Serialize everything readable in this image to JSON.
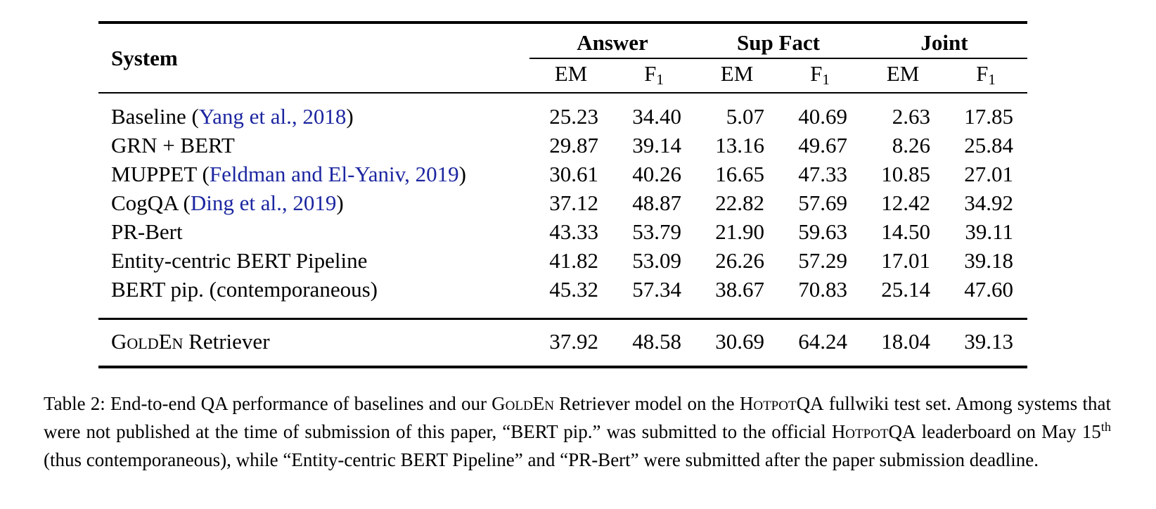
{
  "colors": {
    "background": "#ffffff",
    "text": "#000000",
    "citation_link_blue": "#1c26a0"
  },
  "table": {
    "header": {
      "system_label": "System",
      "groups": [
        {
          "label": "Answer"
        },
        {
          "label": "Sup Fact"
        },
        {
          "label": "Joint"
        }
      ],
      "metrics": [
        {
          "text": "EM",
          "sub": ""
        },
        {
          "text": "F",
          "sub": "1"
        },
        {
          "text": "EM",
          "sub": ""
        },
        {
          "text": "F",
          "sub": "1"
        },
        {
          "text": "EM",
          "sub": ""
        },
        {
          "text": "F",
          "sub": "1"
        }
      ]
    },
    "rows": [
      {
        "label_pre": "Baseline (",
        "label_link": "Yang et al., 2018",
        "label_post": ")",
        "values": [
          "25.23",
          "34.40",
          "5.07",
          "40.69",
          "2.63",
          "17.85"
        ]
      },
      {
        "label_pre": "GRN + BERT",
        "label_link": "",
        "label_post": "",
        "values": [
          "29.87",
          "39.14",
          "13.16",
          "49.67",
          "8.26",
          "25.84"
        ]
      },
      {
        "label_pre": "MUPPET (",
        "label_link": "Feldman and El-Yaniv, 2019",
        "label_post": ")",
        "values": [
          "30.61",
          "40.26",
          "16.65",
          "47.33",
          "10.85",
          "27.01"
        ]
      },
      {
        "label_pre": "CogQA (",
        "label_link": "Ding et al., 2019",
        "label_post": ")",
        "values": [
          "37.12",
          "48.87",
          "22.82",
          "57.69",
          "12.42",
          "34.92"
        ]
      },
      {
        "label_pre": "PR-Bert",
        "label_link": "",
        "label_post": "",
        "values": [
          "43.33",
          "53.79",
          "21.90",
          "59.63",
          "14.50",
          "39.11"
        ]
      },
      {
        "label_pre": "Entity-centric BERT Pipeline",
        "label_link": "",
        "label_post": "",
        "values": [
          "41.82",
          "53.09",
          "26.26",
          "57.29",
          "17.01",
          "39.18"
        ]
      },
      {
        "label_pre": "BERT pip. (contemporaneous)",
        "label_link": "",
        "label_post": "",
        "values": [
          "45.32",
          "57.34",
          "38.67",
          "70.83",
          "25.14",
          "47.60"
        ]
      }
    ],
    "golden_row": {
      "label_sc": "GoldEn",
      "label_rest": " Retriever",
      "values": [
        "37.92",
        "48.58",
        "30.69",
        "64.24",
        "18.04",
        "39.13"
      ]
    }
  },
  "caption": {
    "seg_intro": "Table 2: End-to-end QA performance of baselines and our ",
    "golden_name": "GoldEn",
    "seg_mid1": " Retriever model on the ",
    "hotpot_1": "HotpotQA",
    "seg_mid2": " fullwiki test set. Among systems that were not published at the time of submission of this paper, “BERT pip.” was submitted to the official ",
    "hotpot_2": "HotpotQA",
    "seg_mid3": " leaderboard on May 15",
    "sup": "th",
    "seg_end": " (thus contemporaneous), while “Entity-centric BERT Pipeline” and “PR-Bert” were submitted after the paper submission deadline."
  }
}
